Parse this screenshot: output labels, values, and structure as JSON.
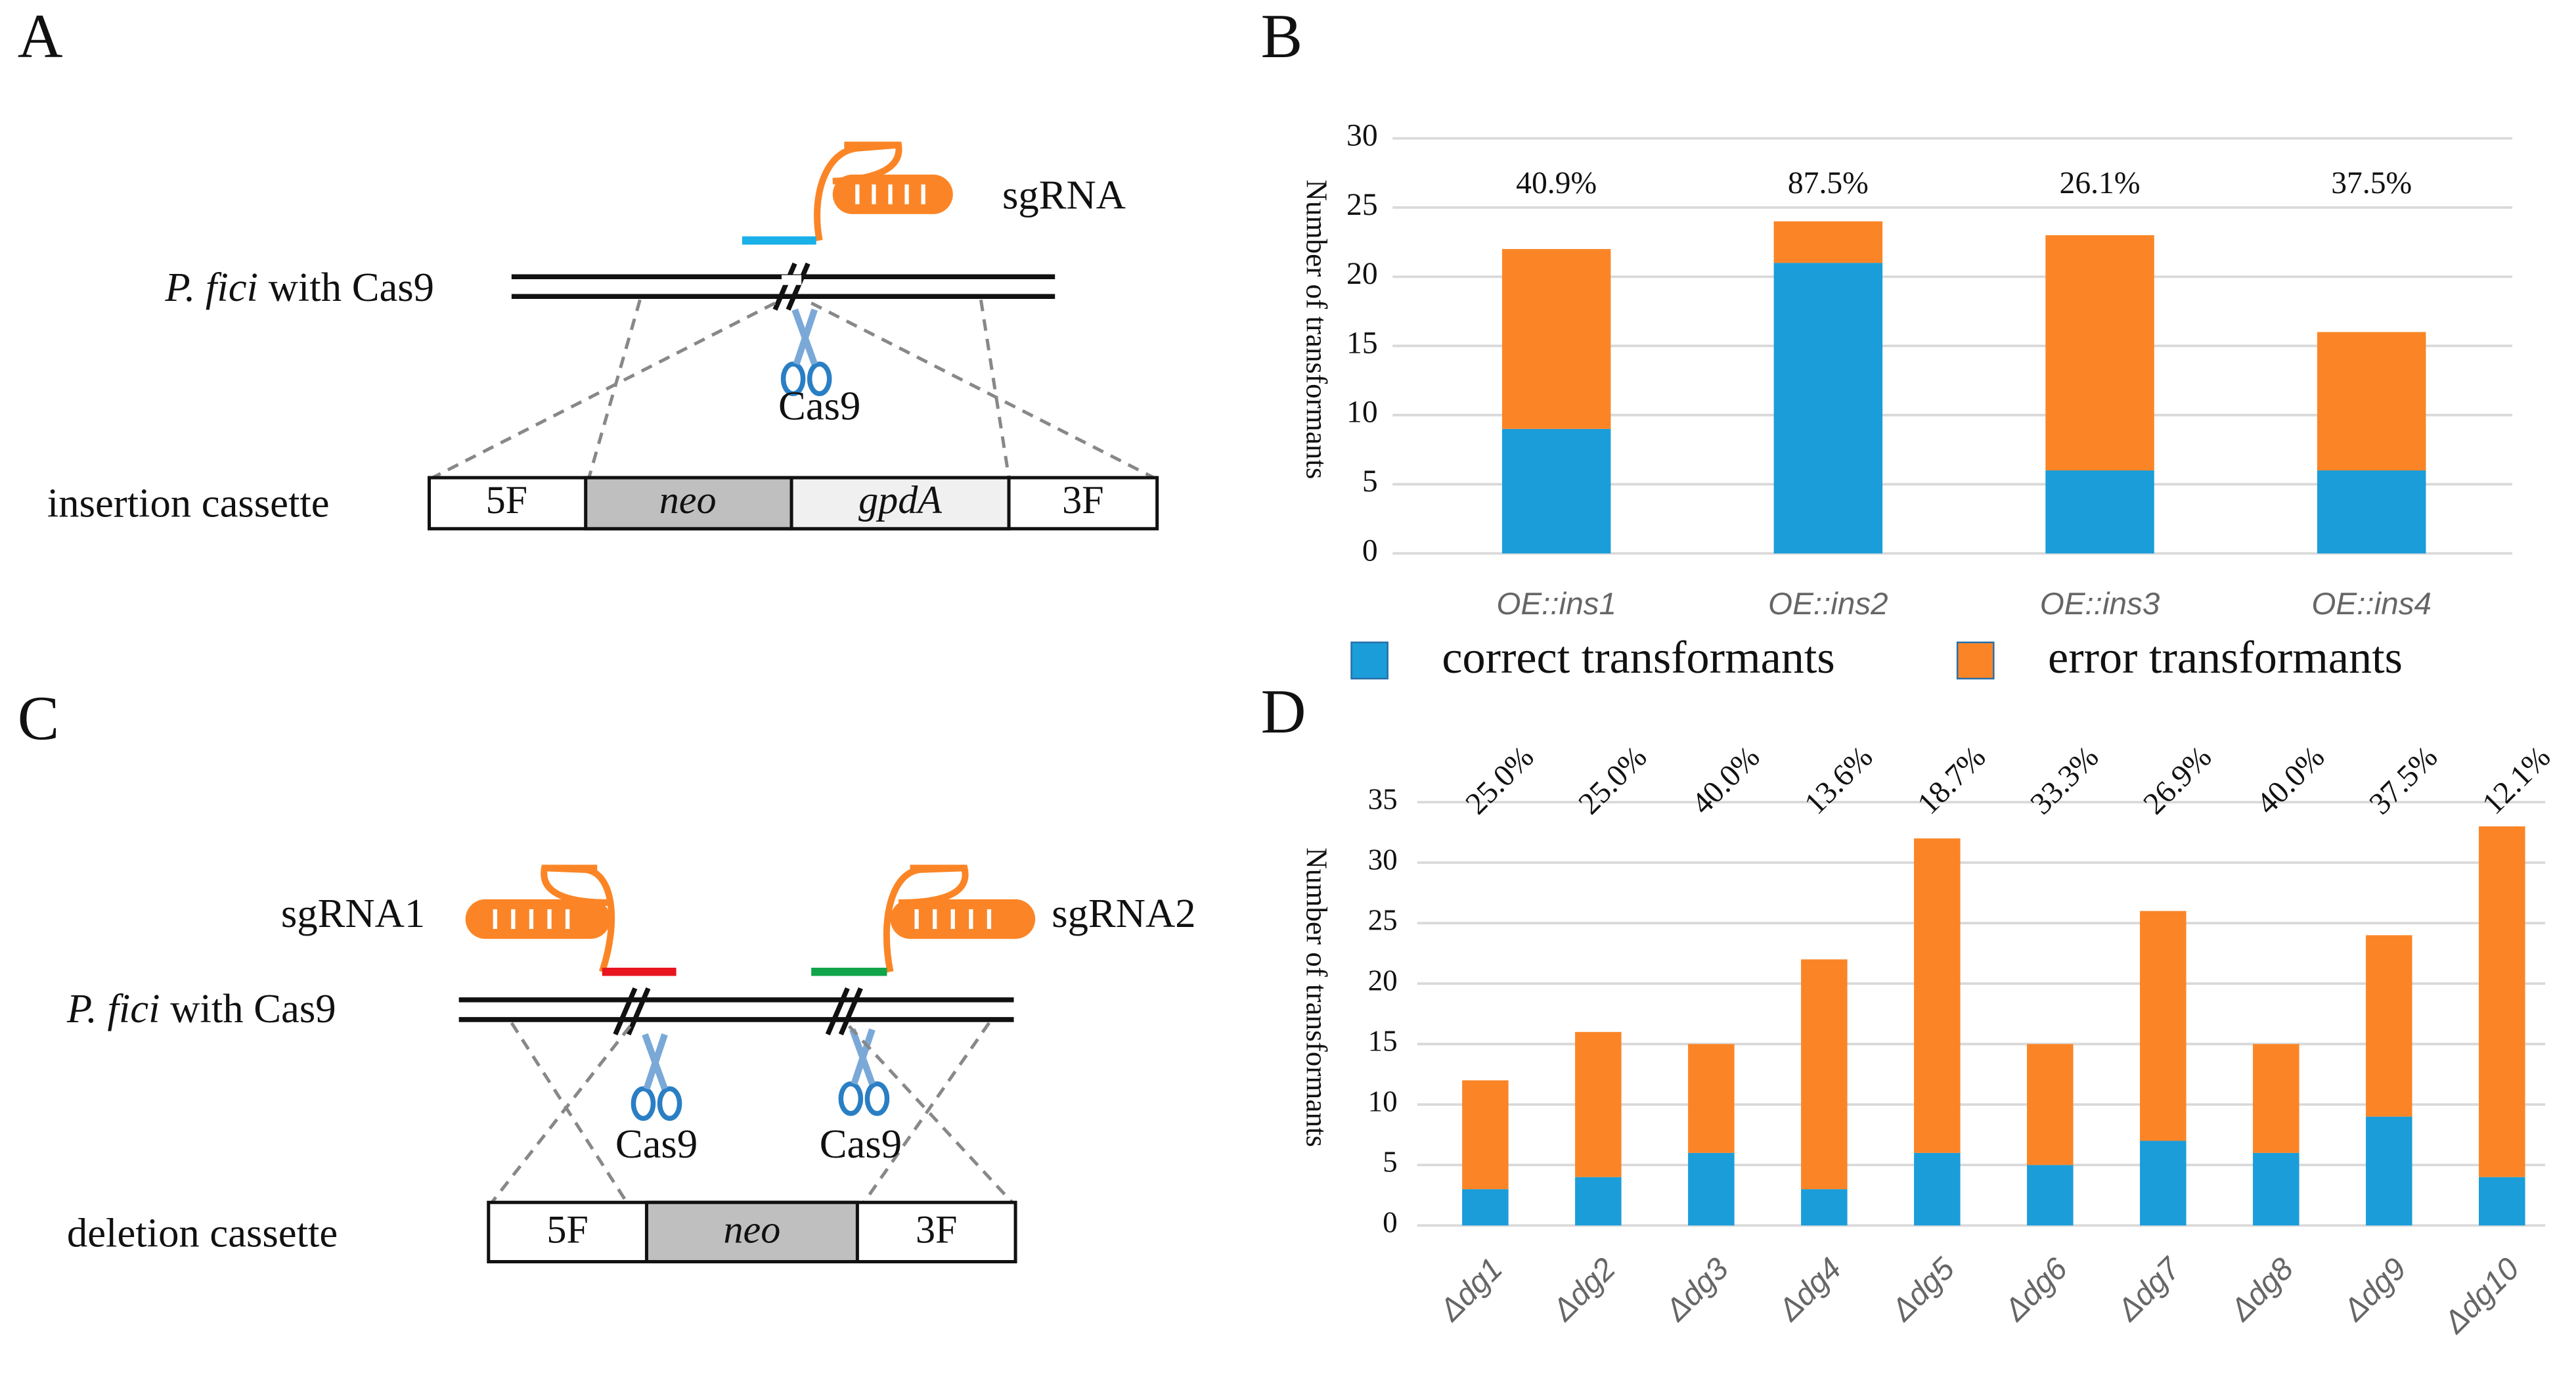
{
  "panel_labels": [
    "A",
    "B",
    "C",
    "D"
  ],
  "insertion": {
    "sgrna": "sgRNA",
    "strain_species": "P. fici",
    "strain_suffix": "with Cas9",
    "cas9": "Cas9",
    "cassette_label": "insertion cassette",
    "segments": [
      "5F",
      "neo",
      "gpdA",
      "3F"
    ]
  },
  "deletion": {
    "sgrnas": [
      "sgRNA1",
      "sgRNA2"
    ],
    "strain_species": "P. fici",
    "strain_suffix": "with Cas9",
    "cas9": [
      "Cas9",
      "Cas9"
    ],
    "cassette_label": "deletion cassette",
    "segments": [
      "5F",
      "neo",
      "3F"
    ]
  },
  "chart_data": [
    {
      "type": "stacked_bar",
      "y_label": "Number of transformants",
      "categories": [
        "OE::ins1",
        "OE::ins2",
        "OE::ins3",
        "OE::ins4"
      ],
      "series": [
        {
          "name": "correct transformants",
          "color": "#1b9dd9",
          "values": [
            9,
            21,
            6,
            6
          ]
        },
        {
          "name": "error transformants",
          "color": "#fb8526",
          "values": [
            13,
            3,
            17,
            10
          ]
        }
      ],
      "annotations": [
        "40.9%",
        "87.5%",
        "26.1%",
        "37.5%"
      ],
      "ylim": [
        0,
        30
      ],
      "yticks": [
        0,
        5,
        10,
        15,
        20,
        25,
        30
      ],
      "grid": true,
      "legend": "bottom"
    },
    {
      "type": "stacked_bar",
      "y_label": "Number of transformants",
      "categories": [
        "Δdg1",
        "Δdg2",
        "Δdg3",
        "Δdg4",
        "Δdg5",
        "Δdg6",
        "Δdg7",
        "Δdg8",
        "Δdg9",
        "Δdg10"
      ],
      "series": [
        {
          "color": "#1b9dd9",
          "values": [
            3,
            4,
            6,
            3,
            6,
            5,
            7,
            6,
            9,
            4
          ]
        },
        {
          "color": "#fb8526",
          "values": [
            9,
            12,
            9,
            19,
            26,
            10,
            19,
            9,
            15,
            29
          ]
        }
      ],
      "annotations": [
        "25.0%",
        "25.0%",
        "40.0%",
        "13.6%",
        "18.7%",
        "33.3%",
        "26.9%",
        "40.0%",
        "37.5%",
        "12.1%"
      ],
      "ylim": [
        0,
        35
      ],
      "yticks": [
        0,
        5,
        10,
        15,
        20,
        25,
        30,
        35
      ],
      "grid": true
    }
  ]
}
